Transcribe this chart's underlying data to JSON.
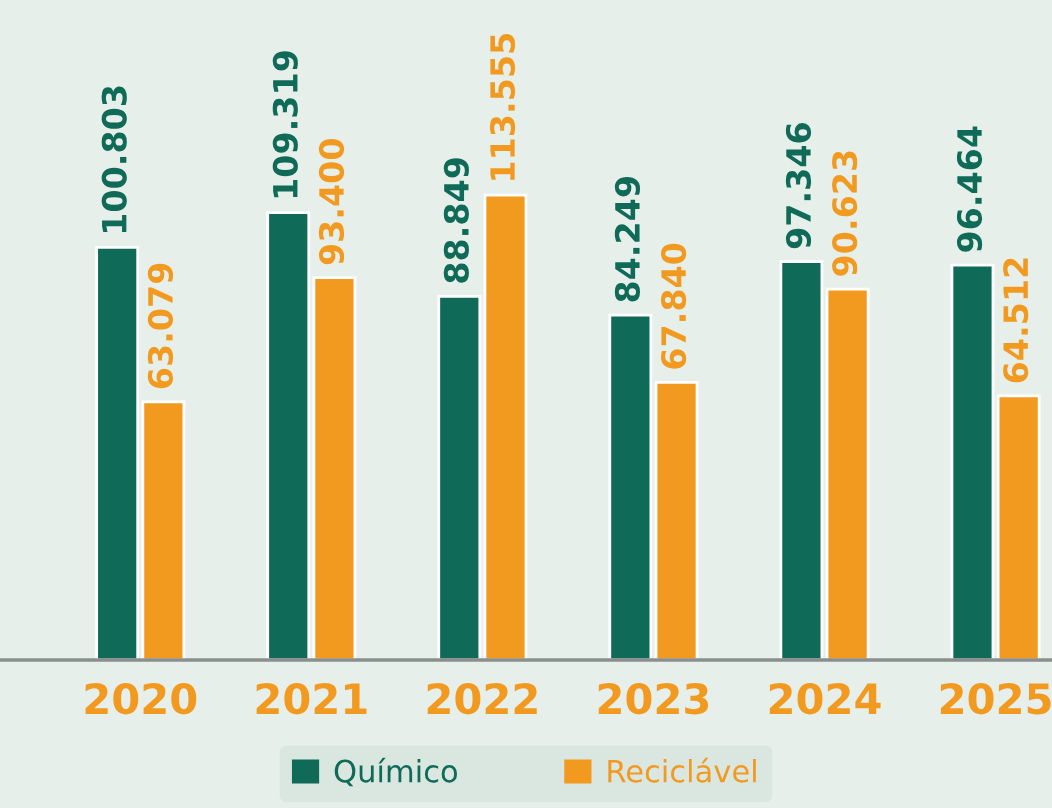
{
  "chart_data": {
    "type": "bar",
    "categories": [
      "2020",
      "2021",
      "2022",
      "2023",
      "2024",
      "2025"
    ],
    "series": [
      {
        "name": "Químico",
        "color": "#0f6b58",
        "values": [
          100.803,
          109.319,
          88.849,
          84.249,
          97.346,
          96.464
        ],
        "value_labels": [
          "100.803",
          "109.319",
          "88.849",
          "84.249",
          "97.346",
          "96.464"
        ]
      },
      {
        "name": "Reciclável",
        "color": "#f29a1f",
        "values": [
          63.079,
          93.4,
          113.555,
          67.84,
          90.623,
          64.512
        ],
        "value_labels": [
          "63.079",
          "93.400",
          "113.555",
          "67.840",
          "90.623",
          "64.512"
        ]
      }
    ],
    "legend": "bottom",
    "grid": false,
    "tick_labels": "x"
  }
}
